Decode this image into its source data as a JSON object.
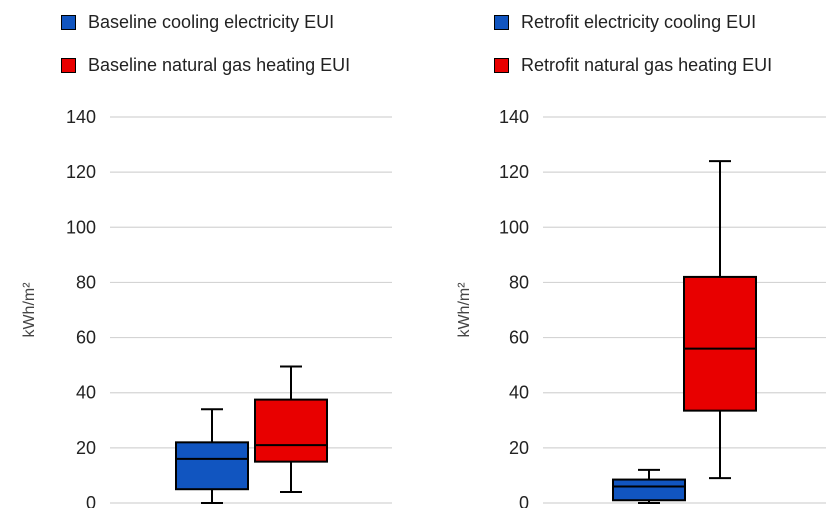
{
  "chart_data": [
    {
      "type": "box",
      "ylabel": "kWh/m²",
      "ylim": [
        0,
        140
      ],
      "yticks": [
        "0",
        "20",
        "40",
        "60",
        "80",
        "100",
        "120",
        "140"
      ],
      "grid": true,
      "legend_position": "top",
      "series": [
        {
          "name": "Baseline  cooling electricity EUI",
          "color": "#1155c0",
          "min": 0,
          "q1": 5,
          "median": 16,
          "q3": 22,
          "max": 34
        },
        {
          "name": "Baseline  natural gas heating EUI",
          "color": "#e80000",
          "min": 4,
          "q1": 15,
          "median": 21,
          "q3": 37.5,
          "max": 49.5
        }
      ]
    },
    {
      "type": "box",
      "ylabel": "kWh/m²",
      "ylim": [
        0,
        140
      ],
      "yticks": [
        "0",
        "20",
        "40",
        "60",
        "80",
        "100",
        "120",
        "140"
      ],
      "grid": true,
      "legend_position": "top",
      "series": [
        {
          "name": "Retrofit electricity cooling EUI",
          "color": "#1155c0",
          "min": 0,
          "q1": 1,
          "median": 6,
          "q3": 8.5,
          "max": 12
        },
        {
          "name": "Retrofit  natural gas heating EUI",
          "color": "#e80000",
          "min": 9,
          "q1": 33.5,
          "median": 56,
          "q3": 82,
          "max": 124
        }
      ]
    }
  ]
}
